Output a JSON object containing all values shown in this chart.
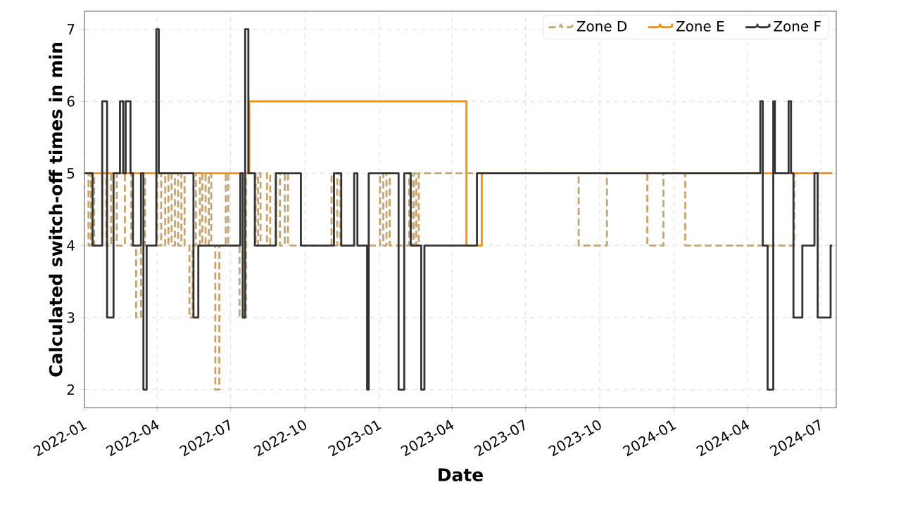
{
  "chart_data": {
    "type": "step",
    "xlabel": "Date",
    "ylabel": "Calculated switch-off times in min",
    "xlim": [
      "2022-01-01",
      "2024-07-20"
    ],
    "ylim": [
      1.75,
      7.25
    ],
    "xticks": [
      "2022-01",
      "2022-04",
      "2022-07",
      "2022-10",
      "2023-01",
      "2023-04",
      "2023-07",
      "2023-10",
      "2024-01",
      "2024-04",
      "2024-07"
    ],
    "yticks": [
      2,
      3,
      4,
      5,
      6,
      7
    ],
    "grid": true,
    "legend": "top right",
    "series": [
      {
        "name": "Zone D",
        "color": "#c8a56e",
        "line_style": "dashed",
        "x": [
          "2022-01-01",
          "2022-01-06",
          "2022-01-09",
          "2022-01-13",
          "2022-01-23",
          "2022-01-28",
          "2022-02-03",
          "2022-02-10",
          "2022-02-20",
          "2022-02-28",
          "2022-03-06",
          "2022-03-12",
          "2022-03-17",
          "2022-04-01",
          "2022-04-06",
          "2022-04-11",
          "2022-04-15",
          "2022-04-19",
          "2022-04-23",
          "2022-04-27",
          "2022-05-01",
          "2022-05-05",
          "2022-05-11",
          "2022-05-15",
          "2022-05-19",
          "2022-05-24",
          "2022-05-27",
          "2022-05-31",
          "2022-06-04",
          "2022-06-07",
          "2022-06-12",
          "2022-06-17",
          "2022-06-25",
          "2022-06-28",
          "2022-07-12",
          "2022-07-20",
          "2022-08-01",
          "2022-08-04",
          "2022-08-07",
          "2022-08-15",
          "2022-08-19",
          "2022-08-26",
          "2022-08-31",
          "2022-09-06",
          "2022-09-10",
          "2022-11-03",
          "2022-11-06",
          "2022-11-10",
          "2022-11-14",
          "2023-01-02",
          "2023-01-06",
          "2023-01-10",
          "2023-01-14",
          "2023-02-07",
          "2023-02-10",
          "2023-02-13",
          "2023-02-16",
          "2023-02-19",
          "2023-09-05",
          "2023-10-10",
          "2023-11-29",
          "2023-12-19",
          "2024-01-15",
          "2024-05-29",
          "2024-07-15"
        ],
        "values": [
          5,
          4,
          5,
          4,
          5,
          4,
          5,
          4,
          5,
          4,
          3,
          4,
          5,
          4,
          5,
          4,
          5,
          4,
          5,
          4,
          5,
          4,
          3,
          4,
          5,
          4,
          5,
          4,
          5,
          4,
          2,
          4,
          5,
          4,
          3,
          5,
          4,
          5,
          4,
          5,
          4,
          5,
          4,
          5,
          4,
          5,
          4,
          5,
          4,
          5,
          4,
          5,
          4,
          5,
          4,
          5,
          4,
          5,
          4,
          5,
          4,
          5,
          4,
          5,
          5
        ]
      },
      {
        "name": "Zone E",
        "color": "#ff8c00",
        "line_style": "solid",
        "x": [
          "2022-01-01",
          "2022-07-24",
          "2023-04-19",
          "2023-05-08",
          "2024-07-15"
        ],
        "values": [
          5,
          6,
          4,
          5,
          5
        ]
      },
      {
        "name": "Zone F",
        "color": "#333333",
        "line_style": "solid",
        "x": [
          "2022-01-01",
          "2022-01-11",
          "2022-01-23",
          "2022-01-29",
          "2022-02-06",
          "2022-02-14",
          "2022-02-18",
          "2022-02-21",
          "2022-02-27",
          "2022-03-02",
          "2022-03-12",
          "2022-03-15",
          "2022-03-19",
          "2022-03-31",
          "2022-04-03",
          "2022-05-16",
          "2022-05-22",
          "2022-07-13",
          "2022-07-16",
          "2022-07-19",
          "2022-07-23",
          "2022-07-31",
          "2022-08-26",
          "2022-09-26",
          "2022-11-06",
          "2022-11-15",
          "2022-12-01",
          "2022-12-05",
          "2022-12-17",
          "2022-12-19",
          "2023-01-25",
          "2023-02-01",
          "2023-02-09",
          "2023-02-22",
          "2023-02-26",
          "2023-05-02",
          "2024-04-17",
          "2024-04-20",
          "2024-04-26",
          "2024-05-03",
          "2024-05-05",
          "2024-05-22",
          "2024-05-25",
          "2024-05-28",
          "2024-06-08",
          "2024-06-23",
          "2024-06-27",
          "2024-07-13",
          "2024-07-15"
        ],
        "values": [
          5,
          4,
          6,
          3,
          5,
          6,
          5,
          6,
          5,
          4,
          5,
          2,
          4,
          7,
          5,
          3,
          4,
          5,
          3,
          7,
          5,
          4,
          5,
          4,
          5,
          4,
          5,
          4,
          2,
          5,
          2,
          5,
          4,
          2,
          4,
          5,
          6,
          4,
          2,
          6,
          5,
          6,
          5,
          3,
          4,
          5,
          3,
          4,
          4
        ]
      }
    ]
  }
}
